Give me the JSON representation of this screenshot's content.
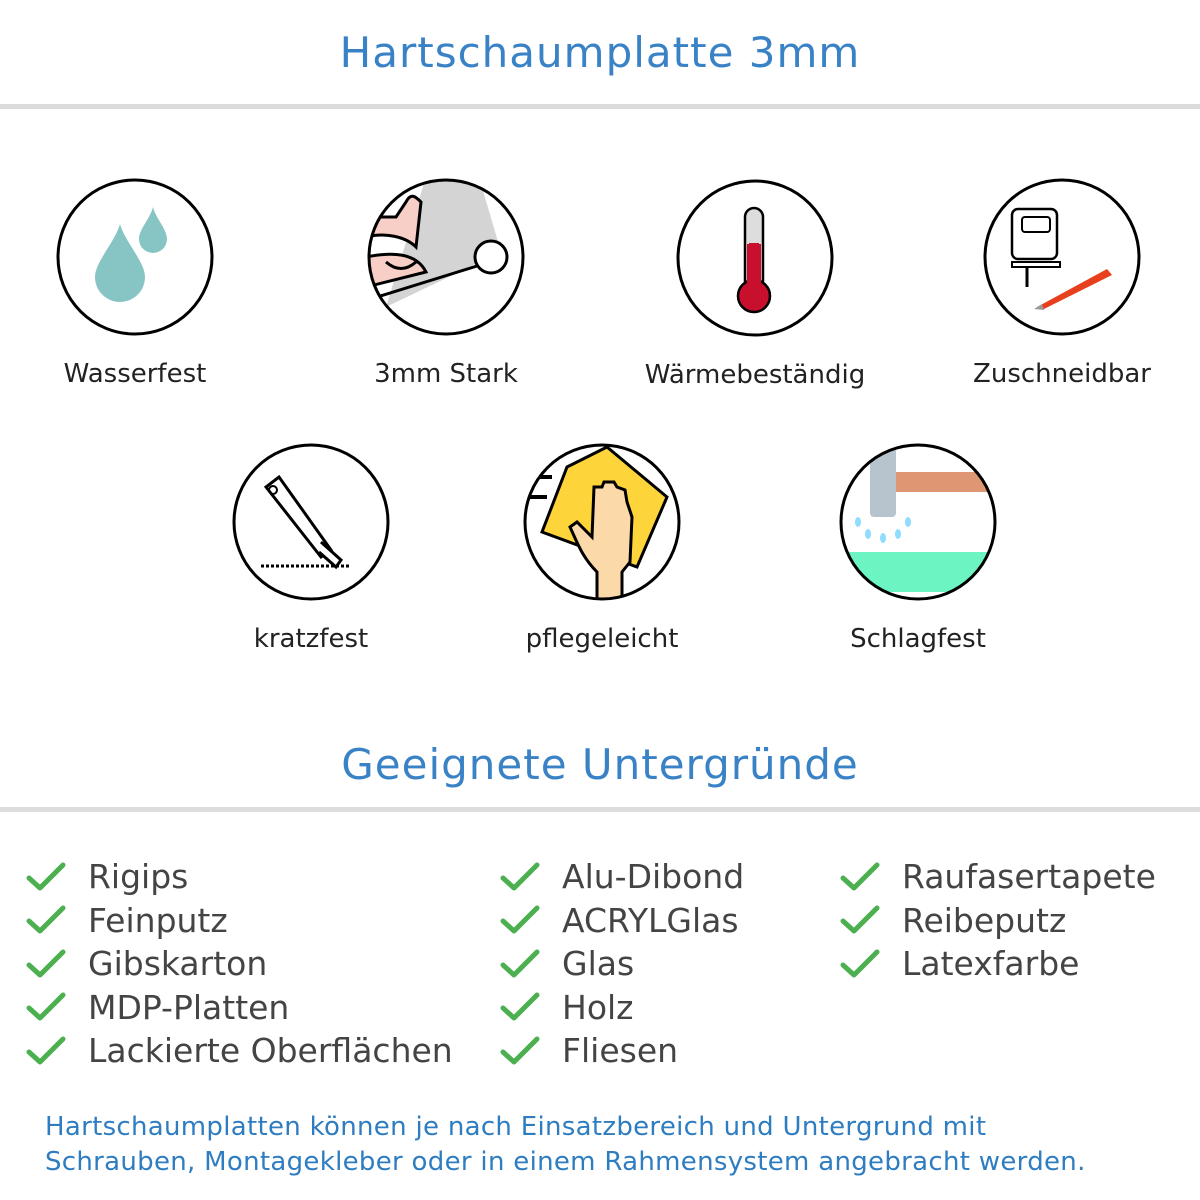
{
  "header": {
    "title": "Hartschaumplatte 3mm"
  },
  "features": [
    {
      "label": "Wasserfest",
      "icon": "water-drops-icon"
    },
    {
      "label": "3mm Stark",
      "icon": "strong-arm-icon"
    },
    {
      "label": "Wärmebeständig",
      "icon": "thermometer-icon"
    },
    {
      "label": "Zuschneidbar",
      "icon": "jigsaw-cutter-icon"
    },
    {
      "label": "kratzfest",
      "icon": "cutter-knife-icon"
    },
    {
      "label": "pflegeleicht",
      "icon": "cleaning-hand-icon"
    },
    {
      "label": "Schlagfest",
      "icon": "hammer-icon"
    }
  ],
  "surfaces": {
    "title": "Geeignete Untergründe",
    "check_color": "#4caf50",
    "columns": [
      [
        "Rigips",
        "Feinputz",
        "Gibskarton",
        "MDP-Platten",
        "Lackierte Oberflächen"
      ],
      [
        "Alu-Dibond",
        "ACRYLGlas",
        "Glas",
        "Holz",
        "Fliesen"
      ],
      [
        "Raufasertapete",
        "Reibeputz",
        "Latexfarbe"
      ]
    ]
  },
  "footer": {
    "line1": "Hartschaumplatten können je nach Einsatzbereich und Untergrund mit",
    "line2": "Schrauben, Montagekleber oder in einem Rahmensystem angebracht werden."
  }
}
